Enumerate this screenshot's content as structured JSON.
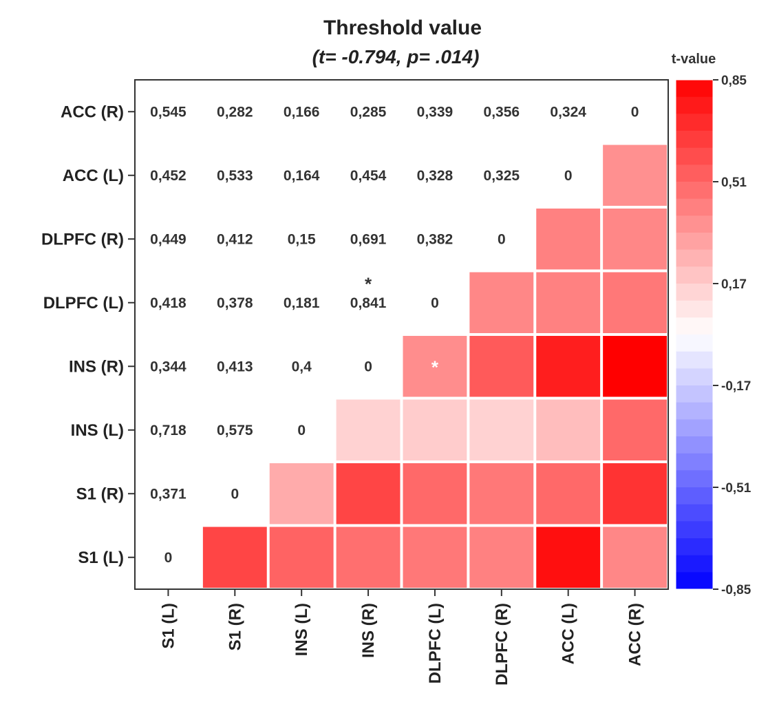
{
  "chart_data": {
    "type": "heatmap",
    "title": "Threshold value",
    "subtitle": {
      "open": "(",
      "t_part": "t= -0.794",
      "sep": ", ",
      "p_part": "p= .014",
      "close": ")"
    },
    "x_categories": [
      "S1 (L)",
      "S1 (R)",
      "INS (L)",
      "INS (R)",
      "DLPFC (L)",
      "DLPFC (R)",
      "ACC (L)",
      "ACC (R)"
    ],
    "y_categories": [
      "ACC (R)",
      "ACC (L)",
      "DLPFC (R)",
      "DLPFC (L)",
      "INS (R)",
      "INS (L)",
      "S1 (R)",
      "S1 (L)"
    ],
    "upper_labels": [
      [
        "0,545",
        "0,282",
        "0,166",
        "0,285",
        "0,339",
        "0,356",
        "0,324",
        "0"
      ],
      [
        "0,452",
        "0,533",
        "0,164",
        "0,454",
        "0,328",
        "0,325",
        "0"
      ],
      [
        "0,449",
        "0,412",
        "0,15",
        "0,691",
        "0,382",
        "0"
      ],
      [
        "0,418",
        "0,378",
        "0,181",
        "0,841",
        "0"
      ],
      [
        "0,344",
        "0,413",
        "0,4",
        "0"
      ],
      [
        "0,718",
        "0,575",
        "0"
      ],
      [
        "0,371",
        "0"
      ],
      [
        "0"
      ]
    ],
    "lower_values": [
      [],
      [
        0.37
      ],
      [
        0.4,
        0.42
      ],
      [
        0.45,
        0.42,
        0.4
      ],
      [
        0.85,
        0.75,
        0.55,
        0.38
      ],
      [
        0.5,
        0.22,
        0.15,
        0.17,
        0.15
      ],
      [
        0.68,
        0.5,
        0.45,
        0.5,
        0.62,
        0.28
      ],
      [
        0.4,
        0.8,
        0.42,
        0.45,
        0.48,
        0.52,
        0.62
      ]
    ],
    "upper_stars": [
      {
        "row": 3,
        "col": 3,
        "symbol": "*"
      }
    ],
    "lower_stars": [
      {
        "row": 4,
        "col": 4,
        "symbol": "*"
      }
    ],
    "colorbar": {
      "title": "t-value",
      "min": -0.85,
      "max": 0.85,
      "ticks": [
        0.85,
        0.51,
        0.17,
        -0.17,
        -0.51,
        -0.85
      ],
      "tick_labels": [
        "0,85",
        "0,51",
        "0,17",
        "-0,17",
        "-0,51",
        "-0,85"
      ],
      "colors": {
        "low": "#0000ff",
        "mid": "#ffffff",
        "high": "#ff0000"
      },
      "steps": 30
    },
    "grid": false,
    "legend_position": "right"
  }
}
